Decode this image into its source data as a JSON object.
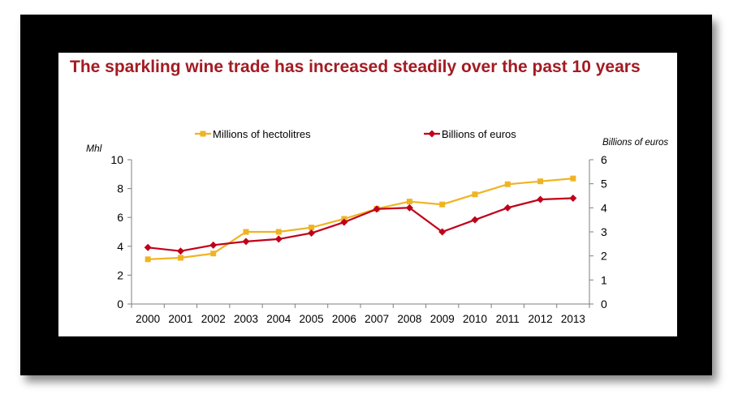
{
  "colors": {
    "frame": "#000000",
    "title": "#a31b23",
    "hectolitres": "#f0b323",
    "euros": "#c0001a",
    "axis": "#7f7f7f"
  },
  "chart_data": {
    "type": "line",
    "title": "The sparkling wine trade has increased steadily over the past 10 years",
    "categories": [
      "2000",
      "2001",
      "2002",
      "2003",
      "2004",
      "2005",
      "2006",
      "2007",
      "2008",
      "2009",
      "2010",
      "2011",
      "2012",
      "2013"
    ],
    "y_left": {
      "label": "Mhl",
      "ylim": [
        0,
        10
      ],
      "ticks": [
        "0",
        "2",
        "4",
        "6",
        "8",
        "10"
      ]
    },
    "y_right": {
      "label": "Billions of euros",
      "ylim": [
        0,
        6
      ],
      "ticks": [
        "0",
        "1",
        "2",
        "3",
        "4",
        "5",
        "6"
      ]
    },
    "grid": false,
    "legend_position": "top",
    "series": [
      {
        "name": "Millions of hectolitres",
        "axis": "left",
        "marker": "square",
        "color": "#f0b323",
        "values": [
          3.1,
          3.2,
          3.5,
          5.0,
          5.0,
          5.3,
          5.9,
          6.6,
          7.1,
          6.9,
          7.6,
          8.3,
          8.5,
          8.7
        ]
      },
      {
        "name": "Billions of euros",
        "axis": "right",
        "marker": "diamond",
        "color": "#c0001a",
        "values": [
          2.35,
          2.2,
          2.45,
          2.6,
          2.7,
          2.95,
          3.4,
          3.95,
          4.0,
          3.0,
          3.5,
          4.0,
          4.35,
          4.4
        ]
      }
    ]
  }
}
